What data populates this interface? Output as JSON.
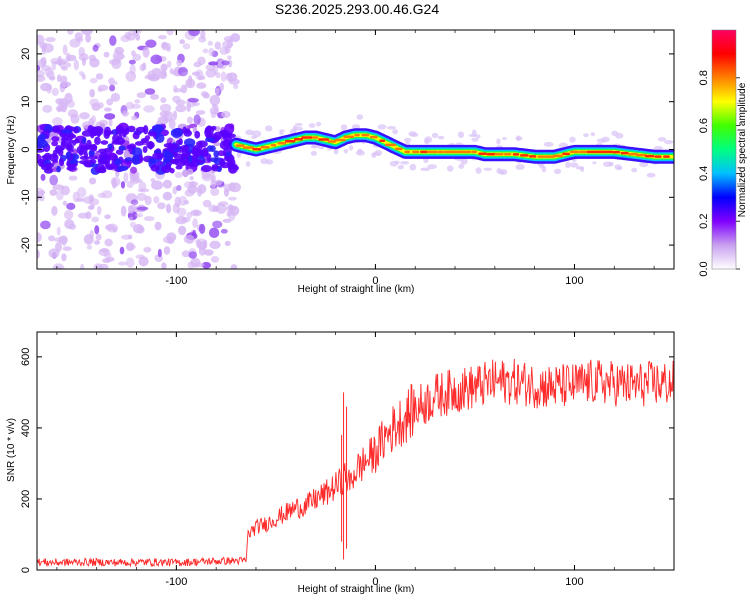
{
  "title": "S236.2025.293.00.46.G24",
  "chart_data": [
    {
      "type": "heatmap",
      "xlabel": "Height of straight line (km)",
      "ylabel": "Frequency (Hz)",
      "xlim": [
        -170,
        150
      ],
      "ylim": [
        -25,
        25
      ],
      "xticks": [
        -100,
        0,
        100
      ],
      "yticks": [
        -20,
        -10,
        0,
        10,
        20
      ],
      "grid": false,
      "noise_region_end_km": -70,
      "ridge": {
        "x": [
          -70,
          -65,
          -60,
          -55,
          -50,
          -45,
          -40,
          -35,
          -30,
          -25,
          -20,
          -15,
          -10,
          -5,
          0,
          5,
          10,
          15,
          20,
          30,
          40,
          50,
          55,
          60,
          70,
          80,
          90,
          100,
          110,
          120,
          130,
          140,
          150
        ],
        "freq": [
          1.0,
          0.5,
          0.0,
          0.5,
          1.0,
          1.5,
          2.0,
          2.5,
          2.5,
          2.0,
          1.5,
          2.5,
          3.0,
          3.0,
          2.5,
          1.5,
          0.5,
          -0.5,
          -0.5,
          -0.5,
          -0.5,
          -0.5,
          -1.0,
          -1.0,
          -1.0,
          -1.5,
          -1.5,
          -0.5,
          -0.5,
          -0.5,
          -1.0,
          -1.5,
          -1.5
        ]
      },
      "colorbar": {
        "label": "Normalized spectral amplitude",
        "ticks": [
          0.0,
          0.2,
          0.4,
          0.6,
          0.8
        ],
        "range": [
          0,
          1
        ],
        "colors": [
          "#ffffff",
          "#c9a0f0",
          "#8000ff",
          "#0000ff",
          "#00c0ff",
          "#00ff80",
          "#40ff00",
          "#ffff00",
          "#ff8000",
          "#ff0000",
          "#ff0060"
        ]
      }
    },
    {
      "type": "line",
      "xlabel": "Height of straight line (km)",
      "ylabel": "SNR (10 * v/v)",
      "xlim": [
        -170,
        150
      ],
      "ylim": [
        0,
        670
      ],
      "xticks": [
        -100,
        0,
        100
      ],
      "yticks": [
        0,
        200,
        400,
        600
      ],
      "grid": false,
      "color": "#ff2a2a",
      "series": [
        {
          "x": [
            -170,
            -160,
            -150,
            -140,
            -130,
            -120,
            -110,
            -100,
            -90,
            -80,
            -70,
            -65,
            -64,
            -60,
            -55,
            -50,
            -45,
            -40,
            -35,
            -30,
            -25,
            -20,
            -17,
            -15,
            -13,
            -10,
            -5,
            0,
            5,
            10,
            15,
            20,
            25,
            30,
            40,
            50,
            60,
            70,
            80,
            90,
            100,
            110,
            120,
            130,
            140,
            150
          ],
          "y": [
            22,
            21,
            22,
            22,
            21,
            22,
            22,
            21,
            23,
            25,
            26,
            26,
            100,
            120,
            130,
            145,
            160,
            175,
            180,
            200,
            215,
            235,
            250,
            270,
            240,
            280,
            305,
            330,
            375,
            405,
            430,
            455,
            470,
            490,
            505,
            515,
            530,
            530,
            520,
            515,
            520,
            530,
            525,
            520,
            525,
            525
          ]
        }
      ]
    }
  ]
}
